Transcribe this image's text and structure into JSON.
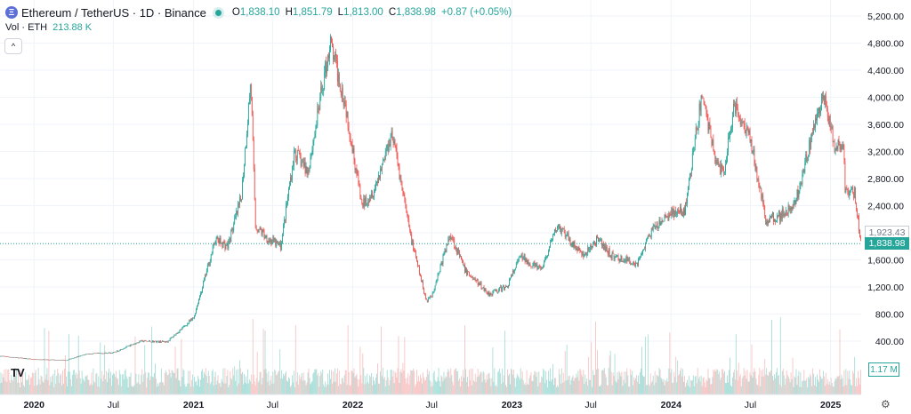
{
  "header": {
    "logo_glyph": "Ξ",
    "title": "Ethereum / TetherUS · 1D · Binance",
    "ohlc": {
      "o_label": "O",
      "o_value": "1,838.10",
      "h_label": "H",
      "h_value": "1,851.79",
      "l_label": "L",
      "l_value": "1,813.00",
      "c_label": "C",
      "c_value": "1,838.98",
      "change": "+0.87 (+0.05%)"
    },
    "volume": {
      "label": "Vol · ETH",
      "value": "213.88 K"
    },
    "collapse_glyph": "^"
  },
  "footer": {
    "tv_logo": "TV",
    "settings_glyph": "⚙"
  },
  "badges": {
    "prev_close": "1,923.43",
    "last_price": "1,838.98",
    "volume": "1.17 M"
  },
  "colors": {
    "up": "#26a69a",
    "down": "#ef5350",
    "up_vol": "#a8ded8",
    "down_vol": "#f7c4c3",
    "grid": "#f0f3fa",
    "text": "#131722"
  },
  "chart_data": {
    "type": "candlestick",
    "title": "Ethereum / TetherUS · 1D · Binance",
    "xlabel": "",
    "ylabel": "",
    "x_range": [
      "2019-10-15",
      "2025-03-12"
    ],
    "ylim": [
      400,
      5200
    ],
    "y_ticks": [
      400,
      800,
      1200,
      1600,
      2000,
      2400,
      2800,
      3200,
      3600,
      4000,
      4400,
      4800,
      5200
    ],
    "y_tick_labels": [
      "400.00",
      "800.00",
      "1,200.00",
      "1,600.00",
      "2,000.00",
      "2,400.00",
      "2,800.00",
      "3,200.00",
      "3,600.00",
      "4,000.00",
      "4,400.00",
      "4,800.00",
      "5,200.00"
    ],
    "x_ticks": [
      {
        "date": "2020-01-01",
        "label": "2020"
      },
      {
        "date": "2020-07-01",
        "label": "Jul"
      },
      {
        "date": "2021-01-01",
        "label": "2021"
      },
      {
        "date": "2021-07-01",
        "label": "Jul"
      },
      {
        "date": "2022-01-01",
        "label": "2022"
      },
      {
        "date": "2022-07-01",
        "label": "Jul"
      },
      {
        "date": "2023-01-01",
        "label": "2023"
      },
      {
        "date": "2023-07-01",
        "label": "Jul"
      },
      {
        "date": "2024-01-01",
        "label": "2024"
      },
      {
        "date": "2024-07-01",
        "label": "Jul"
      },
      {
        "date": "2025-01-01",
        "label": "2025"
      }
    ],
    "grid": true,
    "price_path": [
      {
        "date": "2019-10-15",
        "close": 180
      },
      {
        "date": "2020-01-01",
        "close": 130
      },
      {
        "date": "2020-03-15",
        "close": 120
      },
      {
        "date": "2020-05-01",
        "close": 210
      },
      {
        "date": "2020-07-01",
        "close": 230
      },
      {
        "date": "2020-09-01",
        "close": 400
      },
      {
        "date": "2020-11-01",
        "close": 390
      },
      {
        "date": "2021-01-01",
        "close": 740
      },
      {
        "date": "2021-02-20",
        "close": 1900
      },
      {
        "date": "2021-03-20",
        "close": 1800
      },
      {
        "date": "2021-04-20",
        "close": 2500
      },
      {
        "date": "2021-05-12",
        "close": 4250
      },
      {
        "date": "2021-05-23",
        "close": 2100
      },
      {
        "date": "2021-06-22",
        "close": 1900
      },
      {
        "date": "2021-07-20",
        "close": 1800
      },
      {
        "date": "2021-08-20",
        "close": 3200
      },
      {
        "date": "2021-09-20",
        "close": 2900
      },
      {
        "date": "2021-11-10",
        "close": 4800
      },
      {
        "date": "2021-12-15",
        "close": 3900
      },
      {
        "date": "2022-01-22",
        "close": 2400
      },
      {
        "date": "2022-02-20",
        "close": 2650
      },
      {
        "date": "2022-04-01",
        "close": 3500
      },
      {
        "date": "2022-05-12",
        "close": 2000
      },
      {
        "date": "2022-06-18",
        "close": 1000
      },
      {
        "date": "2022-07-01",
        "close": 1070
      },
      {
        "date": "2022-08-13",
        "close": 1990
      },
      {
        "date": "2022-09-15",
        "close": 1450
      },
      {
        "date": "2022-11-09",
        "close": 1100
      },
      {
        "date": "2022-12-20",
        "close": 1200
      },
      {
        "date": "2023-01-20",
        "close": 1650
      },
      {
        "date": "2023-03-10",
        "close": 1450
      },
      {
        "date": "2023-04-15",
        "close": 2100
      },
      {
        "date": "2023-06-15",
        "close": 1650
      },
      {
        "date": "2023-07-15",
        "close": 1900
      },
      {
        "date": "2023-08-20",
        "close": 1650
      },
      {
        "date": "2023-10-15",
        "close": 1550
      },
      {
        "date": "2023-11-15",
        "close": 2000
      },
      {
        "date": "2024-01-01",
        "close": 2300
      },
      {
        "date": "2024-02-01",
        "close": 2300
      },
      {
        "date": "2024-03-12",
        "close": 4050
      },
      {
        "date": "2024-04-15",
        "close": 3000
      },
      {
        "date": "2024-05-01",
        "close": 2900
      },
      {
        "date": "2024-05-25",
        "close": 3900
      },
      {
        "date": "2024-07-01",
        "close": 3400
      },
      {
        "date": "2024-08-05",
        "close": 2200
      },
      {
        "date": "2024-09-06",
        "close": 2250
      },
      {
        "date": "2024-10-10",
        "close": 2400
      },
      {
        "date": "2024-11-10",
        "close": 3200
      },
      {
        "date": "2024-12-16",
        "close": 4050
      },
      {
        "date": "2025-01-10",
        "close": 3250
      },
      {
        "date": "2025-01-20",
        "close": 3300
      },
      {
        "date": "2025-02-01",
        "close": 3150
      },
      {
        "date": "2025-02-03",
        "close": 2600
      },
      {
        "date": "2025-02-25",
        "close": 2600
      },
      {
        "date": "2025-03-12",
        "close": 1838.98
      }
    ],
    "last_close": 1838.98,
    "previous_close": 1923.43,
    "latest_volume": "1.17 M"
  }
}
